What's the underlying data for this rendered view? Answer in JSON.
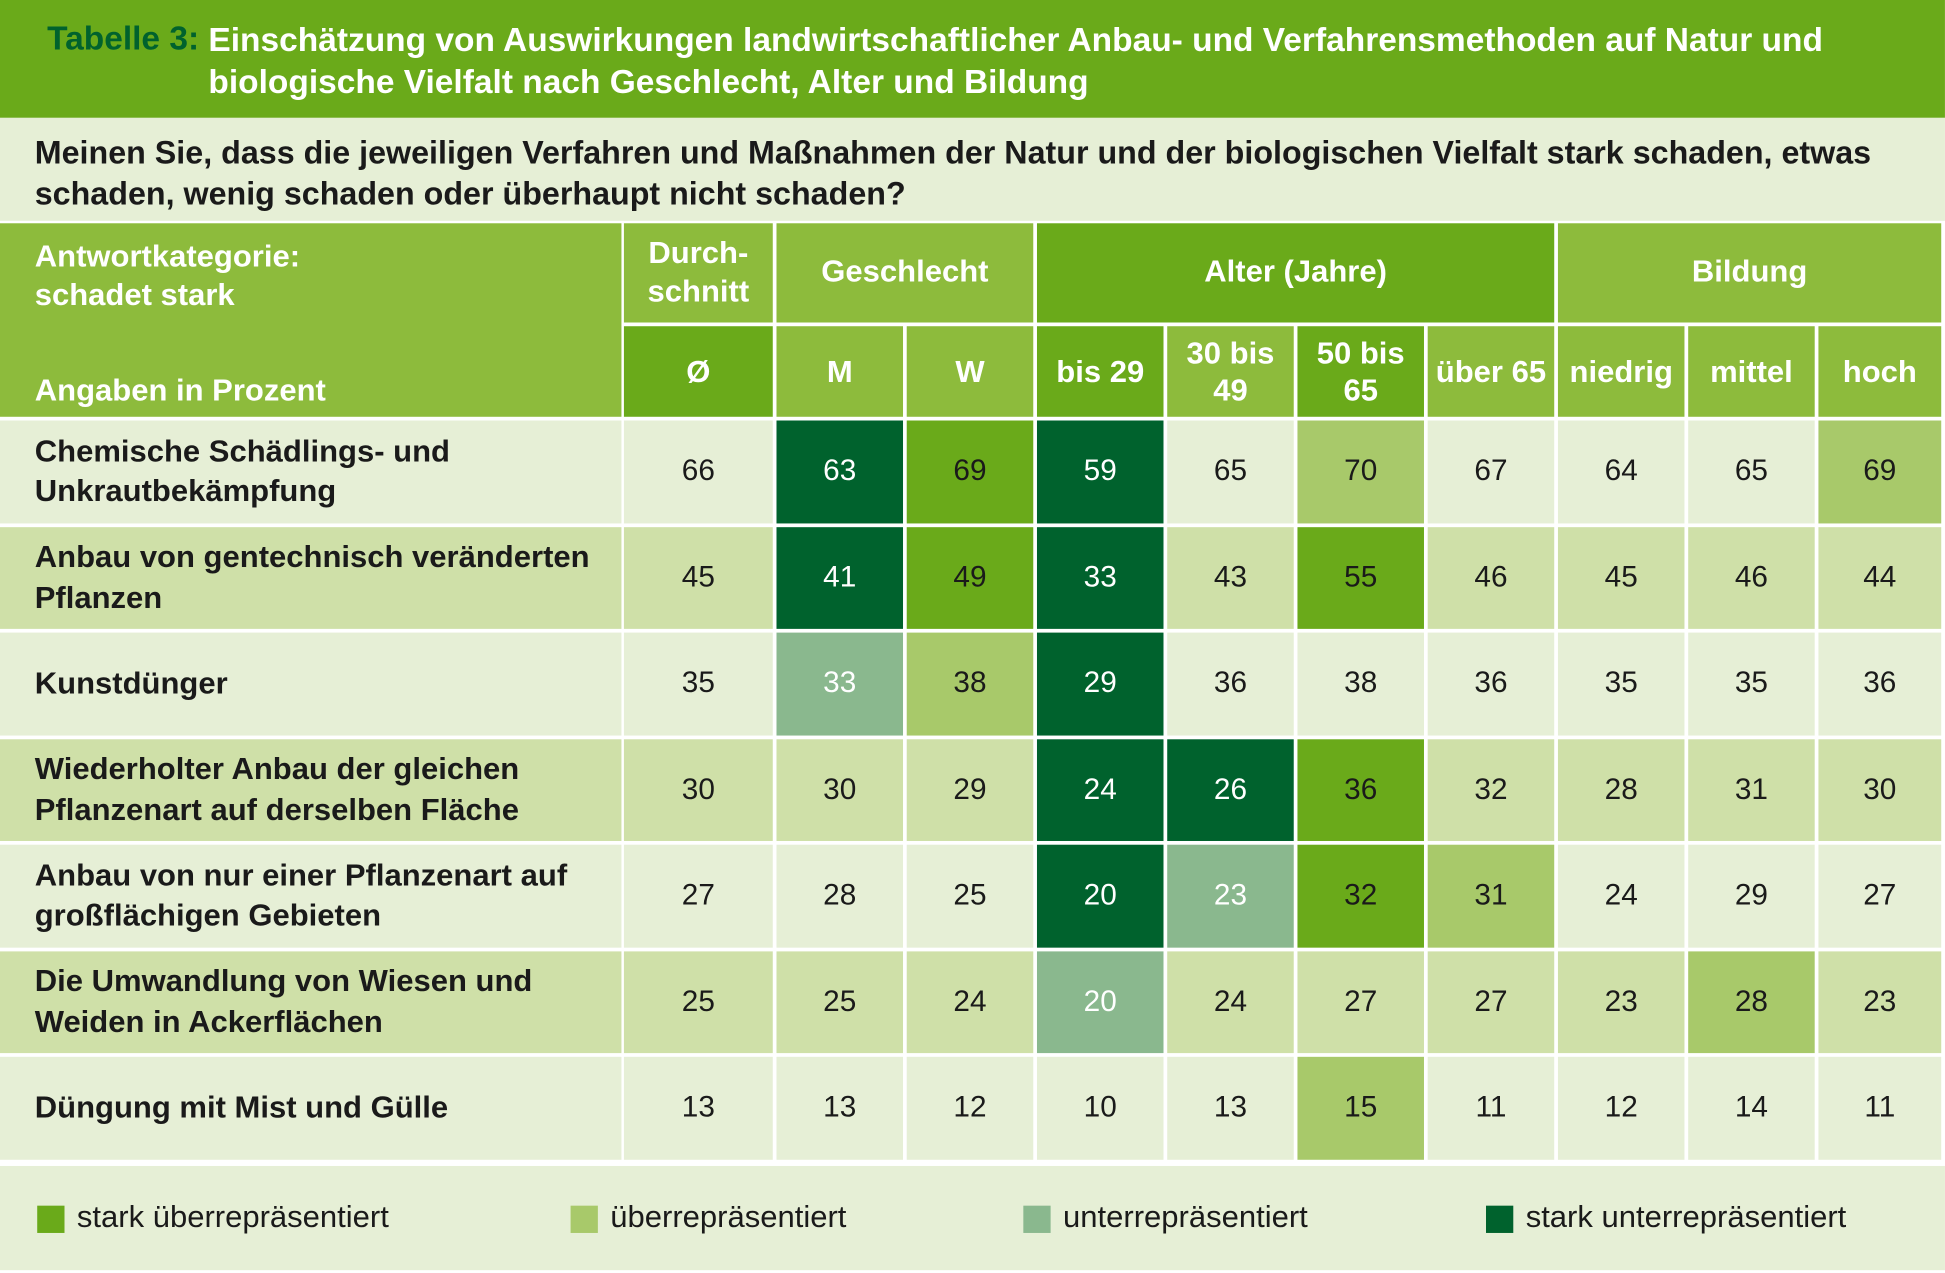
{
  "header": {
    "label": "Tabelle 3:",
    "title": "Einschätzung von Auswirkungen landwirtschaftlicher Anbau- und Verfahrensmethoden auf Natur und biologische Vielfalt nach Geschlecht, Alter und Bildung"
  },
  "question": "Meinen Sie, dass die jeweiligen Verfahren und Maßnahmen der Natur und der biologischen Vielfalt stark schaden, etwas schaden, wenig schaden oder überhaupt nicht schaden?",
  "table": {
    "corner": {
      "category": "Antwortkategorie: schadet stark",
      "unit": "Angaben in Prozent"
    },
    "groups": [
      {
        "label": "Durch­schnitt",
        "columns": [
          "Ø"
        ]
      },
      {
        "label": "Geschlecht",
        "columns": [
          "M",
          "W"
        ]
      },
      {
        "label": "Alter (Jahre)",
        "columns": [
          "bis 29",
          "30 bis 49",
          "50 bis 65",
          "über 65"
        ]
      },
      {
        "label": "Bildung",
        "columns": [
          "niedrig",
          "mittel",
          "hoch"
        ]
      }
    ],
    "rows": [
      {
        "label": "Chemische Schädlings- und Unkrautbekämpfung",
        "values": [
          66,
          63,
          69,
          59,
          65,
          70,
          67,
          64,
          65,
          69
        ],
        "colors": [
          null,
          "#00622d",
          "#6aaa1a",
          "#00622d",
          null,
          "#a8c96a",
          null,
          null,
          null,
          "#a8c96a"
        ]
      },
      {
        "label": "Anbau von gentechnisch veränderten Pflanzen",
        "values": [
          45,
          41,
          49,
          33,
          43,
          55,
          46,
          45,
          46,
          44
        ],
        "colors": [
          null,
          "#00622d",
          "#6aaa1a",
          "#00622d",
          null,
          "#6aaa1a",
          null,
          null,
          null,
          null
        ]
      },
      {
        "label": "Kunstdünger",
        "values": [
          35,
          33,
          38,
          29,
          36,
          38,
          36,
          35,
          35,
          36
        ],
        "colors": [
          null,
          "#8ab88e",
          "#a8c96a",
          "#00622d",
          null,
          null,
          null,
          null,
          null,
          null
        ]
      },
      {
        "label": "Wiederholter Anbau der gleichen Pflanzenart auf derselben Fläche",
        "values": [
          30,
          30,
          29,
          24,
          26,
          36,
          32,
          28,
          31,
          30
        ],
        "colors": [
          null,
          null,
          null,
          "#00622d",
          "#00622d",
          "#6aaa1a",
          null,
          null,
          null,
          null
        ]
      },
      {
        "label": "Anbau von nur einer Pflanzenart auf großflächigen Gebieten",
        "values": [
          27,
          28,
          25,
          20,
          23,
          32,
          31,
          24,
          29,
          27
        ],
        "colors": [
          null,
          null,
          null,
          "#00622d",
          "#8ab88e",
          "#6aaa1a",
          "#a8c96a",
          null,
          null,
          null
        ]
      },
      {
        "label": "Die Umwandlung von Wiesen und Weiden in Ackerflächen",
        "values": [
          25,
          25,
          24,
          20,
          24,
          27,
          27,
          23,
          28,
          23
        ],
        "colors": [
          null,
          null,
          null,
          "#8ab88e",
          null,
          null,
          null,
          null,
          "#a8c96a",
          null
        ]
      },
      {
        "label": "Düngung mit Mist und Gülle",
        "values": [
          13,
          13,
          12,
          10,
          13,
          15,
          11,
          12,
          14,
          11
        ],
        "colors": [
          null,
          null,
          null,
          null,
          null,
          "#a8c96a",
          null,
          null,
          null,
          null
        ]
      }
    ]
  },
  "legend": [
    {
      "label": "stark überrepräsentiert",
      "color": "#6aaa1a"
    },
    {
      "label": "überrepräsentiert",
      "color": "#a8c96a"
    },
    {
      "label": "unterrepräsentiert",
      "color": "#8ab88e"
    },
    {
      "label": "stark unterrepräsentiert",
      "color": "#00622d"
    }
  ]
}
